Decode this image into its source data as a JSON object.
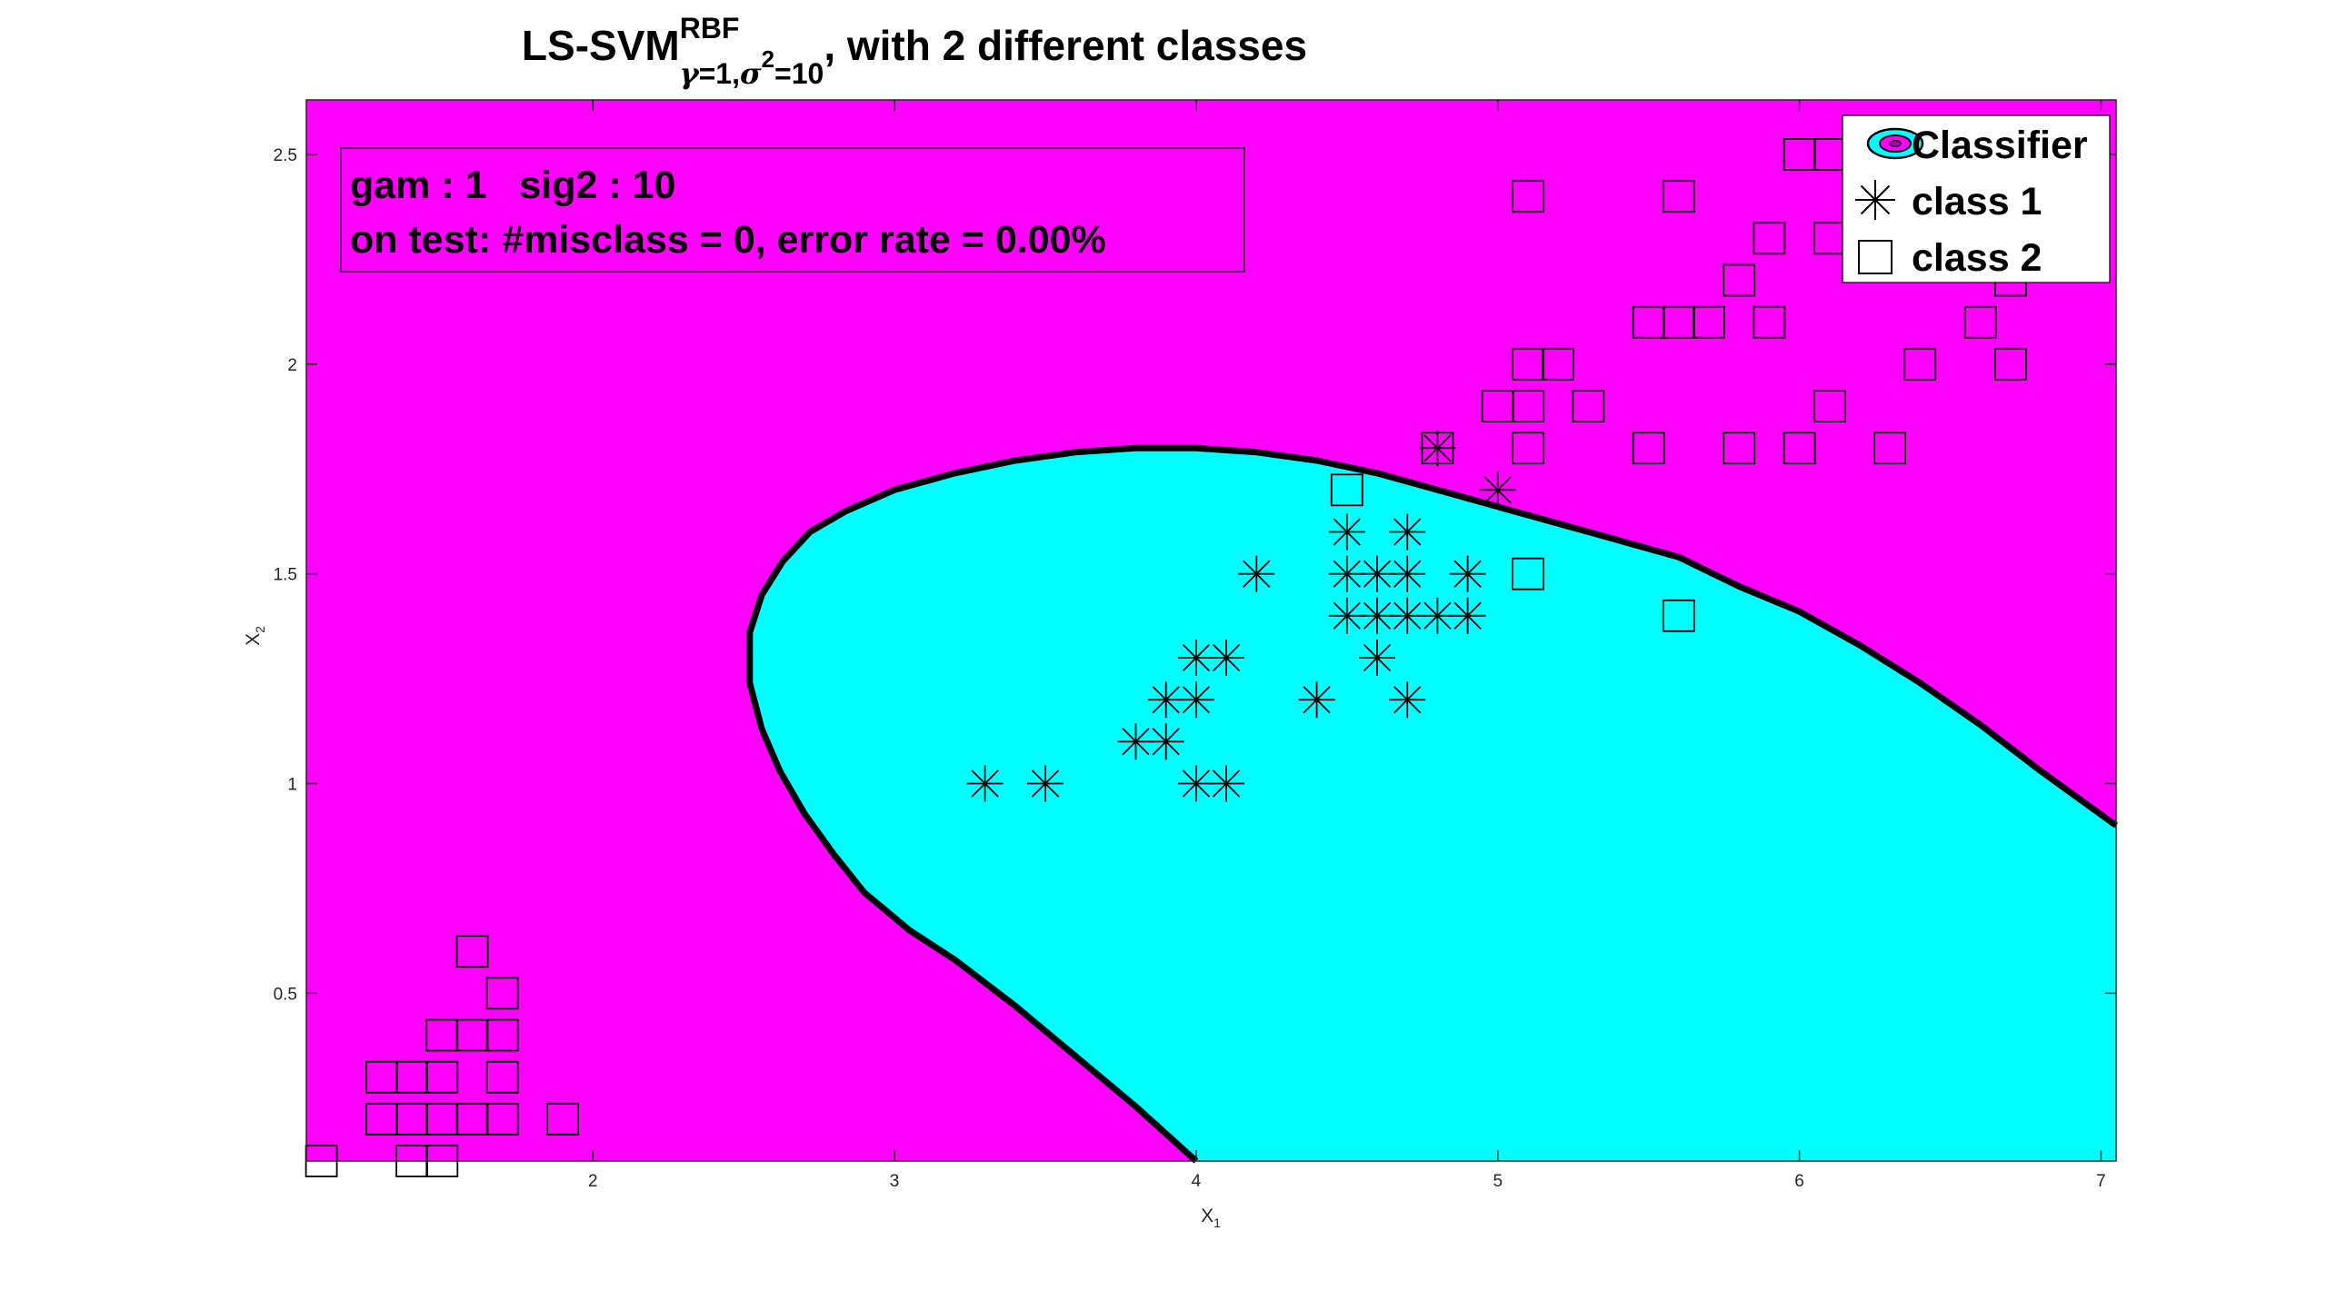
{
  "chart_data": {
    "type": "scatter",
    "title": {
      "prefix": "LS-SVM",
      "superscript": "RBF",
      "sub_gamma": "γ",
      "sub_mid": "=1,",
      "sub_sigma": "σ",
      "sub_sigma_exp": "2",
      "sub_end": "=10",
      "suffix": ", with 2 different classes"
    },
    "xlabel": "X",
    "xlabel_sub": "1",
    "ylabel": "X",
    "ylabel_sub": "2",
    "xlim": [
      1.05,
      7.05
    ],
    "ylim": [
      0.1,
      2.63
    ],
    "xticks": [
      2,
      3,
      4,
      5,
      6,
      7
    ],
    "yticks": [
      0.5,
      1,
      1.5,
      2,
      2.5
    ],
    "info_line1": "gam : 1   sig2 : 10",
    "info_line2": "on test: #misclass = 0, error rate = 0.00%",
    "legend_position": "top-right",
    "legend": [
      "Classifier",
      "class 1",
      "class 2"
    ],
    "colors": {
      "class2_region": "#ff00ff",
      "class1_region": "#00ffff",
      "boundary": "#000000",
      "markers": "#000000"
    },
    "decision_boundary": [
      [
        4.0,
        0.1
      ],
      [
        3.8,
        0.23
      ],
      [
        3.6,
        0.35
      ],
      [
        3.4,
        0.47
      ],
      [
        3.2,
        0.58
      ],
      [
        3.05,
        0.65
      ],
      [
        2.9,
        0.74
      ],
      [
        2.8,
        0.83
      ],
      [
        2.7,
        0.93
      ],
      [
        2.62,
        1.03
      ],
      [
        2.56,
        1.13
      ],
      [
        2.52,
        1.24
      ],
      [
        2.52,
        1.36
      ],
      [
        2.56,
        1.45
      ],
      [
        2.63,
        1.53
      ],
      [
        2.72,
        1.6
      ],
      [
        2.84,
        1.65
      ],
      [
        3.0,
        1.7
      ],
      [
        3.2,
        1.74
      ],
      [
        3.4,
        1.77
      ],
      [
        3.6,
        1.79
      ],
      [
        3.8,
        1.8
      ],
      [
        4.0,
        1.8
      ],
      [
        4.2,
        1.79
      ],
      [
        4.4,
        1.77
      ],
      [
        4.6,
        1.74
      ],
      [
        4.8,
        1.7
      ],
      [
        5.0,
        1.66
      ],
      [
        5.2,
        1.62
      ],
      [
        5.4,
        1.58
      ],
      [
        5.6,
        1.54
      ],
      [
        5.8,
        1.47
      ],
      [
        6.0,
        1.41
      ],
      [
        6.2,
        1.33
      ],
      [
        6.4,
        1.24
      ],
      [
        6.6,
        1.14
      ],
      [
        6.8,
        1.03
      ],
      [
        7.05,
        0.9
      ]
    ],
    "series": [
      {
        "name": "class 1",
        "marker": "asterisk",
        "points": [
          [
            3.3,
            1.0
          ],
          [
            3.5,
            1.0
          ],
          [
            4.0,
            1.0
          ],
          [
            4.1,
            1.0
          ],
          [
            3.8,
            1.1
          ],
          [
            3.9,
            1.1
          ],
          [
            3.9,
            1.2
          ],
          [
            4.0,
            1.2
          ],
          [
            4.4,
            1.2
          ],
          [
            4.7,
            1.2
          ],
          [
            4.0,
            1.3
          ],
          [
            4.1,
            1.3
          ],
          [
            4.6,
            1.3
          ],
          [
            4.5,
            1.4
          ],
          [
            4.6,
            1.4
          ],
          [
            4.7,
            1.4
          ],
          [
            4.8,
            1.4
          ],
          [
            4.9,
            1.4
          ],
          [
            4.2,
            1.5
          ],
          [
            4.5,
            1.5
          ],
          [
            4.6,
            1.5
          ],
          [
            4.7,
            1.5
          ],
          [
            4.9,
            1.5
          ],
          [
            4.5,
            1.6
          ],
          [
            4.7,
            1.6
          ],
          [
            5.0,
            1.7
          ],
          [
            4.8,
            1.8
          ]
        ]
      },
      {
        "name": "class 2",
        "marker": "square",
        "points": [
          [
            1.1,
            0.1
          ],
          [
            1.4,
            0.1
          ],
          [
            1.5,
            0.1
          ],
          [
            1.3,
            0.2
          ],
          [
            1.4,
            0.2
          ],
          [
            1.5,
            0.2
          ],
          [
            1.6,
            0.2
          ],
          [
            1.7,
            0.2
          ],
          [
            1.9,
            0.2
          ],
          [
            1.3,
            0.3
          ],
          [
            1.4,
            0.3
          ],
          [
            1.5,
            0.3
          ],
          [
            1.7,
            0.3
          ],
          [
            1.5,
            0.4
          ],
          [
            1.6,
            0.4
          ],
          [
            1.7,
            0.4
          ],
          [
            1.7,
            0.5
          ],
          [
            1.6,
            0.6
          ],
          [
            5.6,
            1.4
          ],
          [
            5.1,
            1.5
          ],
          [
            4.5,
            1.7
          ],
          [
            4.8,
            1.8
          ],
          [
            5.1,
            1.8
          ],
          [
            5.5,
            1.8
          ],
          [
            5.8,
            1.8
          ],
          [
            6.0,
            1.8
          ],
          [
            6.3,
            1.8
          ],
          [
            5.0,
            1.9
          ],
          [
            5.1,
            1.9
          ],
          [
            5.3,
            1.9
          ],
          [
            6.1,
            1.9
          ],
          [
            5.1,
            2.0
          ],
          [
            5.2,
            2.0
          ],
          [
            6.4,
            2.0
          ],
          [
            6.7,
            2.0
          ],
          [
            5.5,
            2.1
          ],
          [
            5.6,
            2.1
          ],
          [
            5.7,
            2.1
          ],
          [
            5.9,
            2.1
          ],
          [
            6.6,
            2.1
          ],
          [
            5.8,
            2.2
          ],
          [
            6.7,
            2.2
          ],
          [
            5.9,
            2.3
          ],
          [
            6.1,
            2.3
          ],
          [
            5.1,
            2.4
          ],
          [
            5.6,
            2.4
          ],
          [
            6.0,
            2.5
          ],
          [
            6.1,
            2.5
          ]
        ]
      }
    ]
  }
}
